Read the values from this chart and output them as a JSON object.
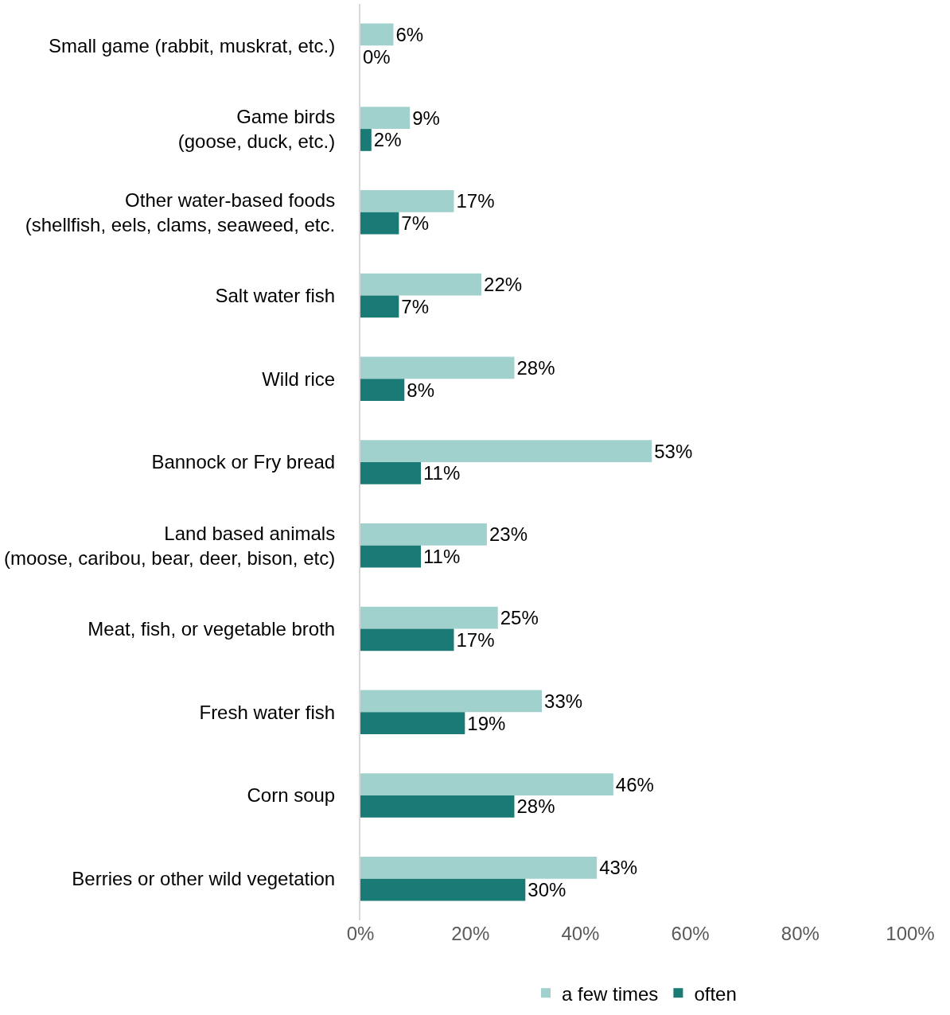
{
  "chart_data": {
    "type": "bar",
    "orientation": "horizontal",
    "categories": [
      "Small game (rabbit, muskrat, etc.)",
      "Game birds\n(goose, duck, etc.)",
      "Other water-based foods\n(shellfish, eels, clams, seaweed, etc.",
      "Salt water fish",
      "Wild rice",
      "Bannock or Fry bread",
      "Land based animals\n(moose, caribou, bear, deer, bison, etc)",
      "Meat, fish, or vegetable broth",
      "Fresh water fish",
      "Corn soup",
      "Berries or other wild vegetation"
    ],
    "series": [
      {
        "name": "a few times",
        "color": "#a0d1cd",
        "values": [
          6,
          9,
          17,
          22,
          28,
          53,
          23,
          25,
          33,
          46,
          43
        ],
        "value_labels": [
          "6%",
          "9%",
          "17%",
          "22%",
          "28%",
          "53%",
          "23%",
          "25%",
          "33%",
          "46%",
          "43%"
        ]
      },
      {
        "name": "often",
        "color": "#1a7b76",
        "values": [
          0,
          2,
          7,
          7,
          8,
          11,
          11,
          17,
          19,
          28,
          30
        ],
        "value_labels": [
          "0%",
          "2%",
          "7%",
          "7%",
          "8%",
          "11%",
          "11%",
          "17%",
          "19%",
          "28%",
          "30%"
        ]
      }
    ],
    "xlim": [
      0,
      100
    ],
    "xticks": [
      {
        "value": 0,
        "label": "0%"
      },
      {
        "value": 20,
        "label": "20%"
      },
      {
        "value": 40,
        "label": "40%"
      },
      {
        "value": 60,
        "label": "60%"
      },
      {
        "value": 80,
        "label": "80%"
      },
      {
        "value": 100,
        "label": "100%"
      }
    ],
    "grid": false,
    "legend": "bottom"
  }
}
